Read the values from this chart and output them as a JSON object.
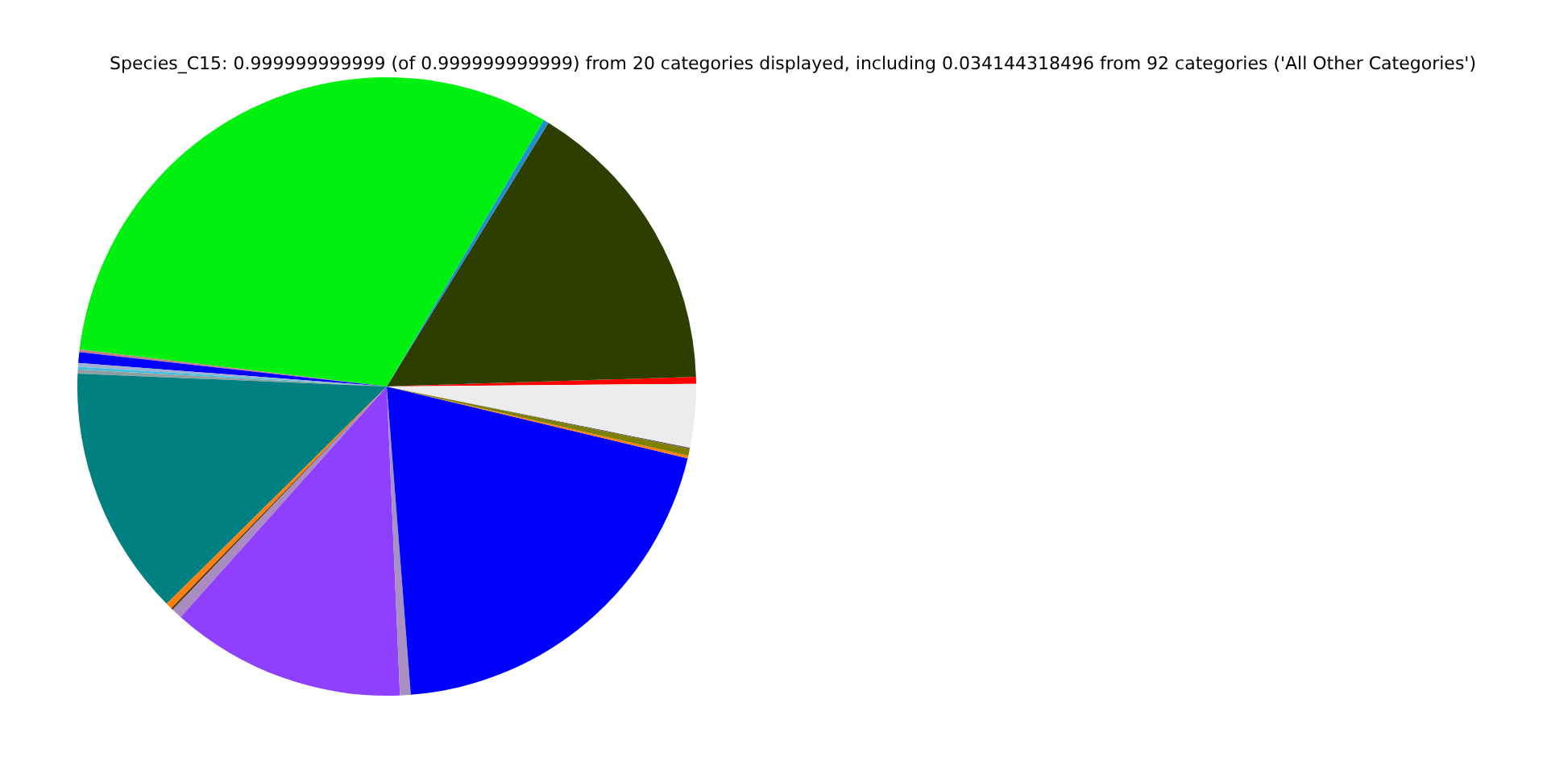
{
  "chart_data": {
    "type": "pie",
    "title": "Species_C15: 0.999999999999 (of 0.999999999999) from 20 categories displayed, including 0.034144318496 from 92 categories ('All Other Categories')",
    "categories": [
      null,
      null,
      null,
      null,
      null,
      null,
      null,
      null,
      null,
      null,
      null,
      null,
      null,
      null,
      null,
      null,
      null,
      null,
      null,
      null
    ],
    "values": [
      0.36,
      15.75,
      0.28,
      31.56,
      0.14,
      0.56,
      0.19,
      0.14,
      0.22,
      13.06,
      0.33,
      0.11,
      0.56,
      12.28,
      0.56,
      20.03,
      0.14,
      0.36,
      0.06,
      3.31
    ],
    "colors": [
      "#ff0000",
      "#2d3e00",
      "#1f8fcf",
      "#00f010",
      "#c08080",
      "#0000ff",
      "#a0b0d0",
      "#40c0e0",
      "#90a0a0",
      "#008080",
      "#ff7f0e",
      "#5a3a10",
      "#a98cc0",
      "#8f40ff",
      "#a890c0",
      "#0000ff",
      "#ff7f0e",
      "#808000",
      "#555555",
      "#ececec"
    ]
  }
}
